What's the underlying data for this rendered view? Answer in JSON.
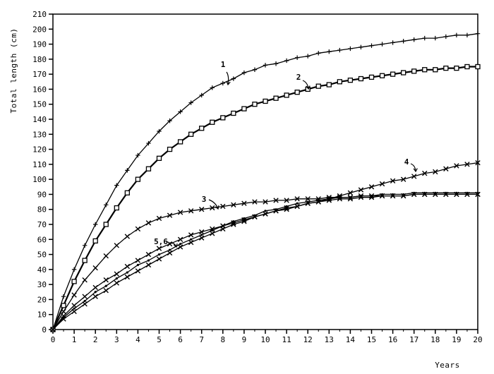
{
  "chart_data": {
    "type": "line",
    "title": "",
    "xlabel": "Years",
    "ylabel": "Total length (cm)",
    "xlim": [
      0,
      20
    ],
    "ylim": [
      0,
      210
    ],
    "x_ticks": [
      "0",
      "1",
      "2",
      "3",
      "4",
      "5",
      "6",
      "7",
      "8",
      "9",
      "10",
      "11",
      "12",
      "13",
      "14",
      "15",
      "16",
      "17",
      "18",
      "19",
      "20"
    ],
    "y_ticks": [
      "0",
      "10",
      "20",
      "30",
      "40",
      "50",
      "60",
      "70",
      "80",
      "90",
      "100",
      "110",
      "120",
      "130",
      "140",
      "150",
      "160",
      "170",
      "180",
      "190",
      "200",
      "210"
    ],
    "grid": false,
    "x": [
      0,
      0.5,
      1,
      1.5,
      2,
      2.5,
      3,
      3.5,
      4,
      4.5,
      5,
      5.5,
      6,
      6.5,
      7,
      7.5,
      8,
      8.5,
      9,
      9.5,
      10,
      10.5,
      11,
      11.5,
      12,
      12.5,
      13,
      13.5,
      14,
      14.5,
      15,
      15.5,
      16,
      16.5,
      17,
      17.5,
      18,
      18.5,
      19,
      19.5,
      20
    ],
    "series": [
      {
        "name": "",
        "marker": "plus",
        "values": [
          0,
          22,
          40,
          56,
          70,
          83,
          96,
          106,
          116,
          124,
          132,
          139,
          145,
          151,
          156,
          161,
          164,
          167,
          171,
          173,
          176,
          177,
          179,
          181,
          182,
          184,
          185,
          186,
          187,
          188,
          189,
          190,
          191,
          192,
          193,
          194,
          194,
          195,
          196,
          196,
          197
        ]
      },
      {
        "name": "",
        "marker": "square",
        "values": [
          0,
          16,
          32,
          46,
          59,
          70,
          81,
          91,
          100,
          107,
          114,
          120,
          125,
          130,
          134,
          138,
          141,
          144,
          147,
          150,
          152,
          154,
          156,
          158,
          160,
          162,
          163,
          165,
          166,
          167,
          168,
          169,
          170,
          171,
          172,
          173,
          173,
          174,
          174,
          175,
          175
        ]
      },
      {
        "name": "",
        "marker": "cross",
        "values": [
          0,
          12,
          23,
          33,
          41,
          49,
          56,
          62,
          67,
          71,
          74,
          76,
          78,
          79,
          80,
          81,
          82,
          83,
          84,
          85,
          85,
          86,
          86,
          87,
          87,
          87,
          88,
          88,
          88,
          89,
          89,
          89,
          89,
          89,
          90,
          90,
          90,
          90,
          90,
          90,
          90
        ]
      },
      {
        "name": "",
        "marker": "cross",
        "values": [
          0,
          9,
          16,
          22,
          28,
          33,
          37,
          42,
          46,
          50,
          54,
          57,
          60,
          63,
          65,
          67,
          69,
          71,
          73,
          75,
          77,
          79,
          80,
          82,
          84,
          85,
          87,
          89,
          91,
          93,
          95,
          97,
          99,
          100,
          102,
          104,
          105,
          107,
          109,
          110,
          111
        ]
      },
      {
        "name": "",
        "marker": "dot",
        "values": [
          0,
          8,
          14,
          19,
          25,
          29,
          34,
          38,
          43,
          46,
          50,
          53,
          57,
          60,
          63,
          66,
          69,
          72,
          74,
          76,
          79,
          80,
          82,
          84,
          85,
          86,
          87,
          88,
          88,
          89,
          89,
          90,
          90,
          90,
          91,
          91,
          91,
          91,
          91,
          91,
          91
        ]
      },
      {
        "name": "",
        "marker": "cross",
        "values": [
          0,
          7,
          12,
          17,
          22,
          26,
          31,
          35,
          39,
          43,
          47,
          51,
          55,
          58,
          61,
          64,
          67,
          70,
          72,
          75,
          77,
          79,
          81,
          82,
          84,
          85,
          86,
          87,
          87,
          88,
          88,
          89,
          89,
          89,
          90,
          90,
          90,
          90,
          90,
          90,
          90
        ]
      }
    ],
    "annotations": [
      {
        "text": "1",
        "series": 0
      },
      {
        "text": "2",
        "series": 1
      },
      {
        "text": "3",
        "series": 2
      },
      {
        "text": "4",
        "series": 3
      },
      {
        "text": "5,6",
        "series": 4
      }
    ]
  }
}
